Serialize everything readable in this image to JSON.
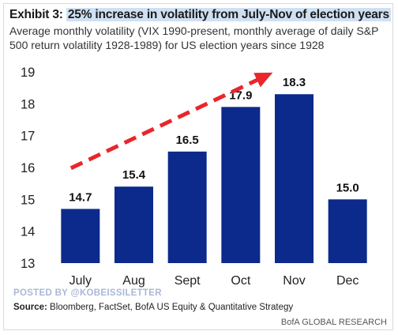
{
  "header": {
    "title_prefix": "Exhibit 3: ",
    "title_highlight": "25% increase in volatility from July-Nov of election years",
    "subtitle": "Average monthly volatility (VIX 1990-present, monthly average of daily S&P 500 return volatility 1928-1989) for US election years since 1928"
  },
  "footer": {
    "watermark": "POSTED BY @KOBEISSILETTER",
    "source_label": "Source:",
    "source_text": " Bloomberg, FactSet, BofA US Equity & Quantitative Strategy",
    "brand": "BofA GLOBAL RESEARCH"
  },
  "chart_data": {
    "type": "bar",
    "categories": [
      "July",
      "Aug",
      "Sept",
      "Oct",
      "Nov",
      "Dec"
    ],
    "values": [
      14.7,
      15.4,
      16.5,
      17.9,
      18.3,
      15.0
    ],
    "data_labels": [
      "14.7",
      "15.4",
      "16.5",
      "17.9",
      "18.3",
      "15.0"
    ],
    "ylim": [
      13,
      19
    ],
    "yticks": [
      "13",
      "14",
      "15",
      "16",
      "17",
      "18",
      "19"
    ],
    "bar_color": "#0b2a8c",
    "arrow_color": "#e8262b",
    "annotation": "dashed red trend arrow rising from July to Nov",
    "grid": false,
    "legend": "none"
  }
}
